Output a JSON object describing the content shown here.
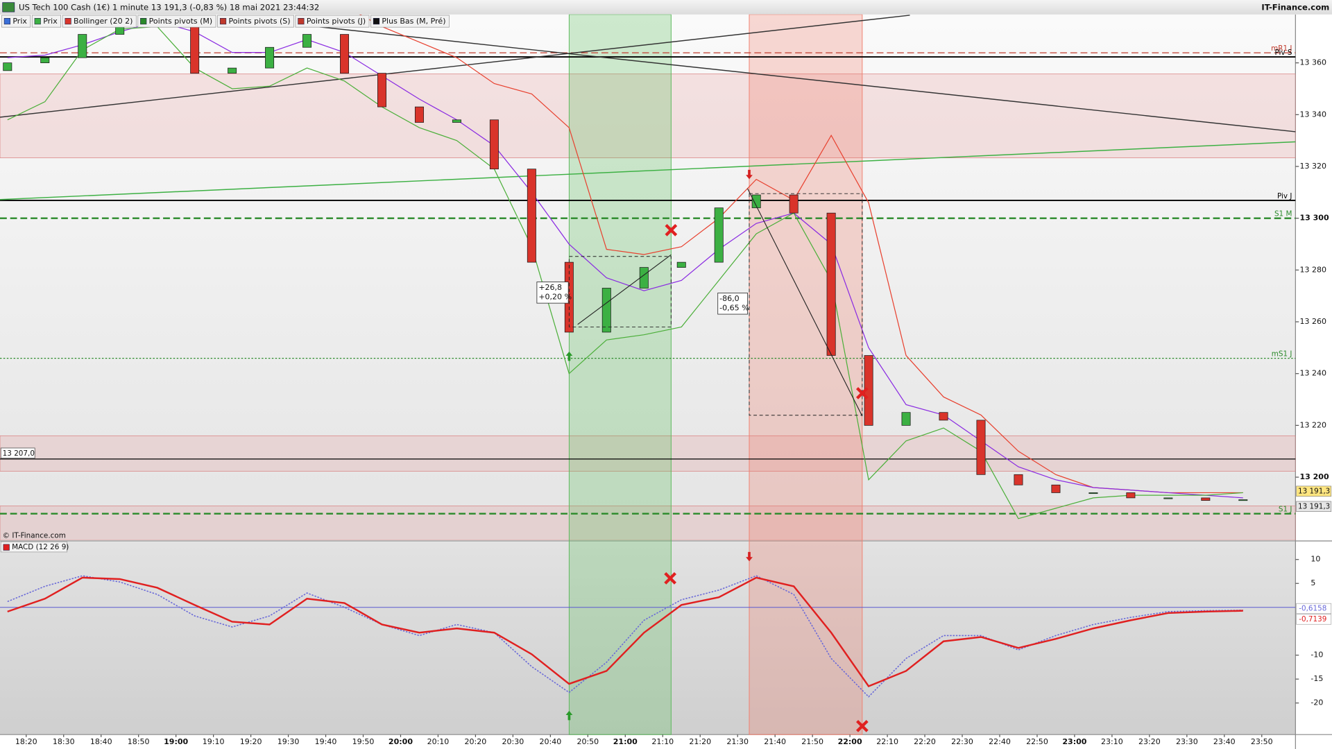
{
  "header": {
    "title": "US Tech 100 Cash (1€) 1 minute 13 191,3 (-0,83 %) 18 mai 2021 23:44:32",
    "brand": "IT-Finance.com",
    "toolbar": [
      "Prix",
      "Prix",
      "Bollinger (20 2)",
      "Points pivots (M)",
      "Points pivots (S)",
      "Points pivots (J)",
      "Plus Bas (M, Pré)"
    ]
  },
  "annotations": [
    [
      "+26,8",
      "+0,20 %"
    ],
    [
      "-86,0",
      "-0,65 %"
    ]
  ],
  "chart_data": [
    {
      "type": "candlestick",
      "watermark": "© IT-Finance.com",
      "x": [
        "18:15",
        "18:25",
        "18:35",
        "18:45",
        "18:55",
        "19:05",
        "19:15",
        "19:25",
        "19:35",
        "19:45",
        "19:55",
        "20:05",
        "20:15",
        "20:25",
        "20:35",
        "20:45",
        "20:55",
        "21:05",
        "21:15",
        "21:25",
        "21:35",
        "21:45",
        "21:55",
        "22:05",
        "22:15",
        "22:25",
        "22:35",
        "22:45",
        "22:55",
        "23:05",
        "23:15",
        "23:25",
        "23:35",
        "23:45"
      ],
      "open": [
        13357,
        13360,
        13362,
        13371,
        13378,
        13374,
        13356,
        13358,
        13366,
        13371,
        13356,
        13343,
        13337,
        13338,
        13319,
        13283,
        13256,
        13273,
        13281,
        13283,
        13304,
        13309,
        13302,
        13247,
        13220,
        13225,
        13222,
        13201,
        13197,
        13194,
        13194,
        13192,
        13192,
        13191
      ],
      "close": [
        13360,
        13362,
        13371,
        13378,
        13374,
        13356,
        13358,
        13366,
        13371,
        13356,
        13343,
        13337,
        13338,
        13319,
        13283,
        13256,
        13273,
        13281,
        13283,
        13304,
        13309,
        13302,
        13247,
        13220,
        13225,
        13222,
        13201,
        13197,
        13194,
        13194,
        13192,
        13192,
        13191,
        13191.3
      ],
      "up_color": "#3cb043",
      "down_color": "#d9342b",
      "overlays": [
        {
          "color": "#e8412f",
          "values": [
            13388,
            13388,
            13390,
            13392,
            13392,
            13388,
            13384,
            13382,
            13385,
            13382,
            13374,
            13368,
            13362,
            13352,
            13348,
            13335,
            13288,
            13286,
            13289,
            13300,
            13315,
            13307,
            13332,
            13306,
            13247,
            13231,
            13224,
            13210,
            13201,
            13196,
            13195,
            13194,
            13194,
            13194
          ]
        },
        {
          "color": "#8a2be2",
          "values": [
            13362,
            13363,
            13367,
            13372,
            13376,
            13372,
            13364,
            13364,
            13369,
            13364,
            13355,
            13346,
            13338,
            13328,
            13310,
            13290,
            13277,
            13272,
            13276,
            13288,
            13298,
            13302,
            13290,
            13250,
            13228,
            13224,
            13214,
            13204,
            13199,
            13196,
            13195,
            13194,
            13193,
            13192
          ]
        },
        {
          "color": "#4caf3a",
          "values": [
            13338,
            13345,
            13365,
            13373,
            13374,
            13358,
            13350,
            13351,
            13358,
            13353,
            13343,
            13335,
            13330,
            13319,
            13289,
            13240,
            13253,
            13255,
            13258,
            13276,
            13294,
            13302,
            13276,
            13199,
            13214,
            13219,
            13210,
            13184,
            13188,
            13192,
            13193,
            13193,
            13193,
            13194
          ]
        }
      ],
      "levels": [
        {
          "value": 13363.9,
          "label": "mR1 J",
          "color": "#c0392b",
          "style": "dashed",
          "width": 1
        },
        {
          "value": 13362.3,
          "label": "Piv S",
          "color": "#000000",
          "style": "solid",
          "width": 1.5
        },
        {
          "value": 13306.9,
          "label": "Piv J",
          "color": "#000000",
          "style": "solid",
          "width": 1.5
        },
        {
          "value": 13300,
          "label": "S1 M",
          "color": "#2a8a2a",
          "style": "dashed",
          "width": 2
        },
        {
          "value": 13245.9,
          "label": "mS1 J",
          "color": "#2a8a2a",
          "style": "dotted",
          "width": 1
        },
        {
          "value": 13185.9,
          "label": "S1 J",
          "color": "#2a8a2a",
          "style": "dashed",
          "width": 2
        },
        {
          "value": 13207,
          "label": "13 207,0",
          "color": "#000000",
          "style": "solid",
          "width": 1,
          "side": "left"
        }
      ],
      "bands": [
        {
          "from": 13323.3,
          "to": 13355.7
        },
        {
          "from": 13202.3,
          "to": 13216
        },
        {
          "from": 13175.7,
          "to": 13188.9
        }
      ],
      "trendlines": [
        {
          "from": [
            "18:13",
            13339
          ],
          "to": [
            "22:16",
            13378.4
          ],
          "color": "#333333"
        },
        {
          "from": [
            "19:35",
            13374.4
          ],
          "to": [
            "23:59",
            13333.4
          ],
          "color": "#333333"
        },
        {
          "from": [
            "18:13",
            13307.2
          ],
          "to": [
            "23:59",
            13329.5
          ],
          "color": "#3cb043"
        }
      ],
      "price_labels": [
        {
          "value": 13191.3,
          "label": "13 191,3",
          "color": "#ffe680"
        },
        {
          "value": 13191.3,
          "label": "13 191,3",
          "color": "#e6e6e6"
        }
      ],
      "xlim": [
        "18:13",
        "23:59"
      ],
      "xticks": [
        "18:20",
        "18:30",
        "18:40",
        "18:50",
        "19:00",
        "19:10",
        "19:20",
        "19:30",
        "19:40",
        "19:50",
        "20:00",
        "20:10",
        "20:20",
        "20:30",
        "20:40",
        "20:50",
        "21:00",
        "21:10",
        "21:20",
        "21:30",
        "21:40",
        "21:50",
        "22:00",
        "22:10",
        "22:20",
        "22:30",
        "22:40",
        "22:50",
        "23:00",
        "23:10",
        "23:20",
        "23:30",
        "23:40",
        "23:50"
      ],
      "ylim": [
        13175.7,
        13378.7
      ],
      "yticks": [
        {
          "value": 13200,
          "label": "13 200"
        },
        {
          "value": 13220,
          "label": "13 220"
        },
        {
          "value": 13240,
          "label": "13 240"
        },
        {
          "value": 13260,
          "label": "13 260"
        },
        {
          "value": 13280,
          "label": "13 280"
        },
        {
          "value": 13300,
          "label": "13 300"
        },
        {
          "value": 13320,
          "label": "13 320"
        },
        {
          "value": 13340,
          "label": "13 340"
        },
        {
          "value": 13360,
          "label": "13 360"
        }
      ]
    },
    {
      "type": "line",
      "legend": "MACD (12 26 9)",
      "series": [
        {
          "color": "#6a6ad8",
          "values": [
            1.2,
            4.4,
            6.6,
            5.3,
            2.7,
            -1.8,
            -4.1,
            -1.8,
            3.0,
            0,
            -3.6,
            -5.9,
            -3.6,
            -5.3,
            -12.4,
            -17.8,
            -11.5,
            -2.7,
            1.6,
            3.6,
            6.6,
            2.7,
            -10.7,
            -18.7,
            -10.7,
            -5.9,
            -5.9,
            -8.9,
            -5.9,
            -3.6,
            -2.1,
            -0.9,
            -0.7,
            -0.6158
          ]
        },
        {
          "color": "#e02020",
          "values": [
            -0.9,
            1.8,
            6.2,
            5.9,
            4.1,
            0.5,
            -3.0,
            -3.6,
            1.8,
            0.9,
            -3.6,
            -5.3,
            -4.4,
            -5.3,
            -9.8,
            -16.0,
            -13.3,
            -5.3,
            0.5,
            2.1,
            6.2,
            4.4,
            -5.3,
            -16.5,
            -13.3,
            -7.1,
            -6.2,
            -8.5,
            -6.6,
            -4.4,
            -2.7,
            -1.2,
            -0.9,
            -0.7139
          ]
        }
      ],
      "price_labels": [
        {
          "value": -0.6158,
          "label": "-0,6158",
          "color": "#6a6ad8"
        },
        {
          "value": -0.7139,
          "label": "-0,7139",
          "color": "#e02020"
        }
      ],
      "ylim": [
        -26.6,
        13.7
      ],
      "yticks": [
        10,
        5,
        -10,
        -15,
        -20
      ]
    }
  ]
}
